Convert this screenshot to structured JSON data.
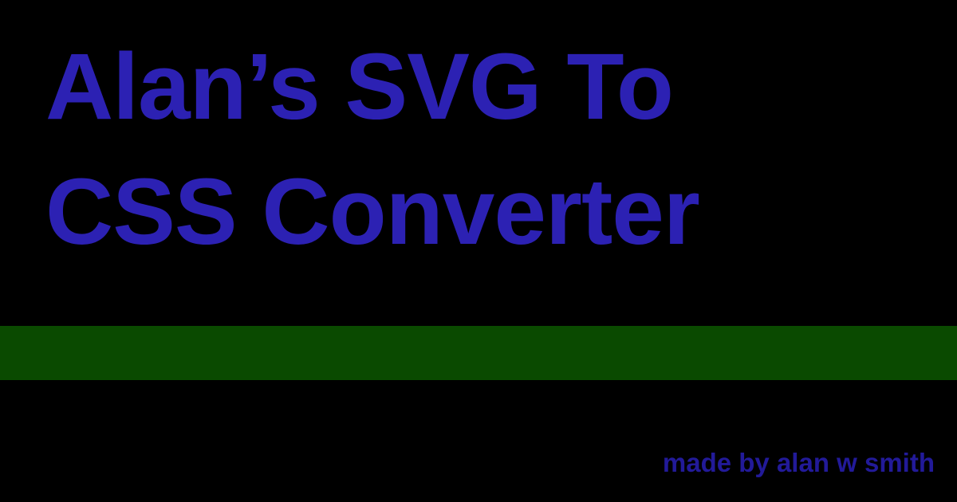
{
  "title": {
    "line1": "Alan’s SVG To",
    "line2": "CSS Converter"
  },
  "byline": "made by alan w smith",
  "colors": {
    "background": "#000000",
    "title": "#2c21b3",
    "band": "#0a4a00",
    "byline": "#221a99"
  }
}
